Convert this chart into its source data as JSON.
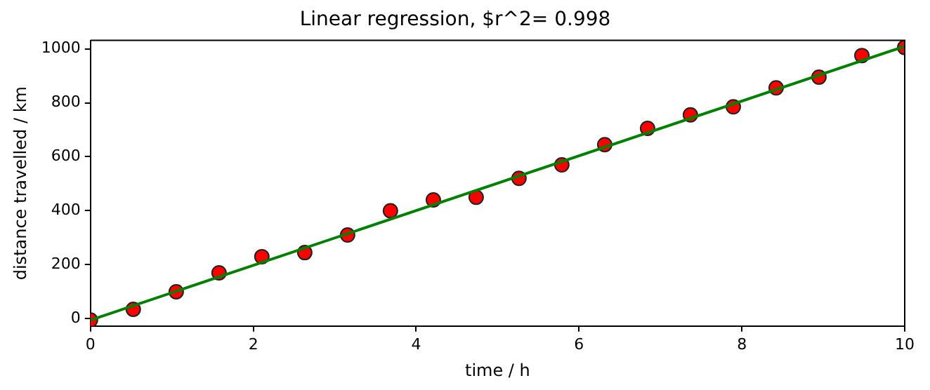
{
  "chart_data": {
    "type": "scatter",
    "title": "Linear regression, $r^2= 0.998",
    "xlabel": "time / h",
    "ylabel": "distance travelled / km",
    "xlim": [
      0,
      10
    ],
    "xticks": [
      0,
      2,
      4,
      6,
      8,
      10
    ],
    "ylim": [
      -27,
      1031
    ],
    "yticks": [
      0,
      200,
      400,
      600,
      800,
      1000
    ],
    "grid": false,
    "legend": false,
    "marker": "circle",
    "series": [
      {
        "color": "#ff0000",
        "x": [
          0,
          0.526,
          1.053,
          1.579,
          2.105,
          2.632,
          3.158,
          3.684,
          4.211,
          4.737,
          5.263,
          5.789,
          6.316,
          6.842,
          7.368,
          7.895,
          8.421,
          8.947,
          9.474,
          10
        ],
        "values": [
          -5,
          35,
          100,
          170,
          230,
          245,
          310,
          400,
          440,
          450,
          520,
          570,
          645,
          705,
          755,
          785,
          855,
          895,
          975,
          1005
        ]
      },
      {
        "type": "line",
        "color": "#008000",
        "x": [
          0,
          10
        ],
        "values": [
          -5,
          1009
        ],
        "marker": "none",
        "line_style": "solid"
      }
    ]
  }
}
